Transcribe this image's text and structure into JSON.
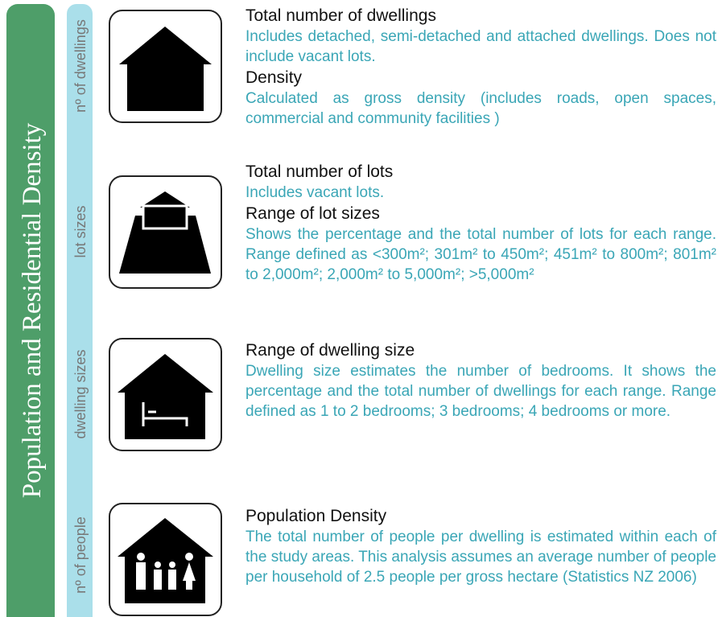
{
  "title": "Population and Residential Density",
  "sections": [
    {
      "label": "nº of dwellings",
      "items": [
        {
          "heading": "Total number of dwellings",
          "body": "Includes detached, semi-detached and attached dwellings. Does not include vacant lots."
        },
        {
          "heading": "Density",
          "body": "Calculated as gross density (includes roads, open spaces, commercial and community facilities )"
        }
      ]
    },
    {
      "label": "lot sizes",
      "items": [
        {
          "heading": "Total number of lots",
          "body": "Includes vacant lots."
        },
        {
          "heading": "Range of lot sizes",
          "body": "Shows the  percentage and the total number of lots for each range. Range defined as <300m²; 301m² to 450m²; 451m² to 800m²; 801m² to 2,000m²; 2,000m² to 5,000m²; >5,000m²"
        }
      ]
    },
    {
      "label": "dwelling sizes",
      "items": [
        {
          "heading": "Range of dwelling size",
          "body": "Dwelling size estimates the number of bedrooms. It shows the  percentage and the total number of dwellings for each range. Range defined as 1 to 2 bedrooms; 3 bedrooms; 4 bedrooms or more."
        }
      ]
    },
    {
      "label": "nº of people",
      "items": [
        {
          "heading": "Population Density",
          "body": "The total number of people per dwelling is estimated within each of the study areas. This analysis assumes an average number of people per household of 2.5 people per gross hectare (Statistics NZ 2006)"
        }
      ]
    }
  ]
}
